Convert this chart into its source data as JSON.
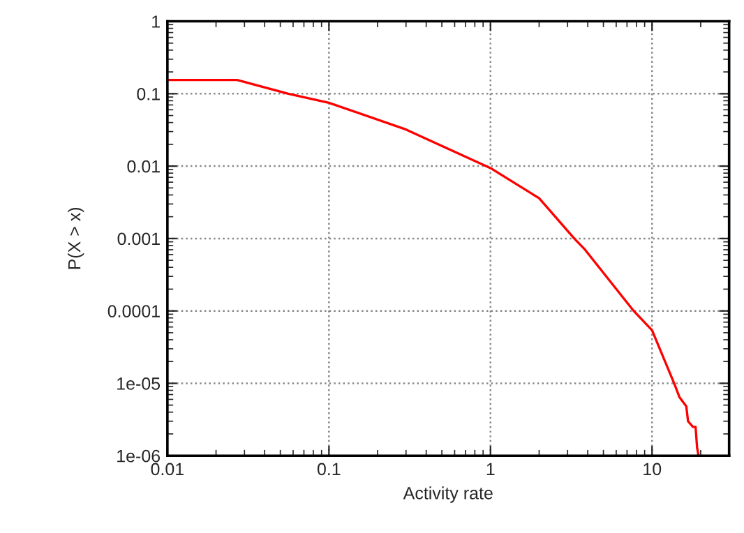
{
  "chart_data": {
    "type": "line",
    "xlabel": "Activity rate",
    "ylabel": "P(X > x)",
    "log": "xy",
    "grid": true,
    "marker": "none",
    "line_style": "solid",
    "xlim": [
      0.01,
      30
    ],
    "xticks": [
      0.01,
      0.1,
      1,
      10
    ],
    "ylim": [
      1e-06,
      1
    ],
    "yticks": [
      {
        "value": 1e-06,
        "label": "1e-06"
      },
      {
        "value": 1e-05,
        "label": "1e-05"
      },
      {
        "value": 0.0001,
        "label": "0.0001"
      },
      {
        "value": 0.001,
        "label": "0.001"
      },
      {
        "value": 0.01,
        "label": "0.01"
      },
      {
        "value": 0.1,
        "label": "0.1"
      },
      1
    ],
    "series": [
      {
        "color": "#ff0000",
        "x": [
          0.01,
          0.027,
          0.056,
          0.1,
          0.3,
          1,
          2,
          3.3,
          3.85,
          7.7,
          10,
          13.7,
          14.8,
          16.3,
          16.7,
          17.9,
          18.6,
          19.0,
          19.4
        ],
        "values": [
          0.155,
          0.155,
          0.1,
          0.075,
          0.032,
          0.0094,
          0.0036,
          0.001,
          0.0007,
          0.0001,
          5.4e-05,
          1e-05,
          6.4e-06,
          4.8e-06,
          3e-06,
          2.5e-06,
          2.5e-06,
          1.3e-06,
          1e-06
        ]
      }
    ]
  }
}
